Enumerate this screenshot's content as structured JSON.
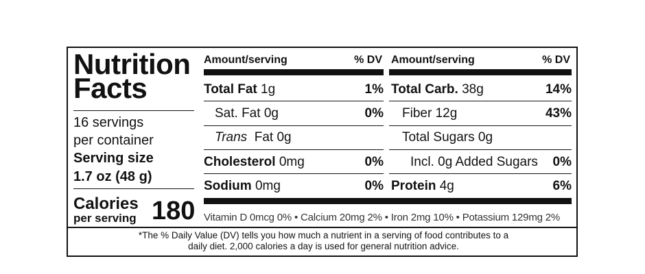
{
  "title_line1": "Nutrition",
  "title_line2": "Facts",
  "servings_line1": "16 servings",
  "servings_line2": "per container",
  "serving_size_label": "Serving size",
  "serving_size_value": "1.7 oz (48 g)",
  "calories_label": "Calories",
  "calories_sublabel": "per serving",
  "calories_value": "180",
  "left_col": {
    "header_amount": "Amount/serving",
    "header_dv": "% DV",
    "rows": [
      {
        "name": "Total Fat",
        "amount": "1g",
        "dv": "1%"
      },
      {
        "name": "Sat. Fat",
        "amount": "0g",
        "dv": "0%"
      },
      {
        "name": "Trans",
        "amount": "Fat  0g",
        "dv": ""
      },
      {
        "name": "Cholesterol",
        "amount": "0mg",
        "dv": "0%"
      },
      {
        "name": "Sodium",
        "amount": "0mg",
        "dv": "0%"
      }
    ]
  },
  "right_col": {
    "header_amount": "Amount/serving",
    "header_dv": "% DV",
    "rows": [
      {
        "name": "Total Carb.",
        "amount": "38g",
        "dv": "14%"
      },
      {
        "name": "Fiber",
        "amount": "12g",
        "dv": "43%"
      },
      {
        "name": "Total Sugars",
        "amount": "0g",
        "dv": ""
      },
      {
        "name": "Incl. 0g Added Sugars",
        "amount": "",
        "dv": "0%"
      },
      {
        "name": "Protein",
        "amount": "4g",
        "dv": "6%"
      }
    ]
  },
  "vitamins_text": "Vitamin D 0mcg 0% • Calcium 20mg 2% • Iron 2mg 10% • Potassium 129mg  2%",
  "footnote_line1": "*The % Daily Value (DV) tells you how much a nutrient in a serving of food contributes to a",
  "footnote_line2": "daily diet. 2,000 calories a day is used for general nutrition advice."
}
